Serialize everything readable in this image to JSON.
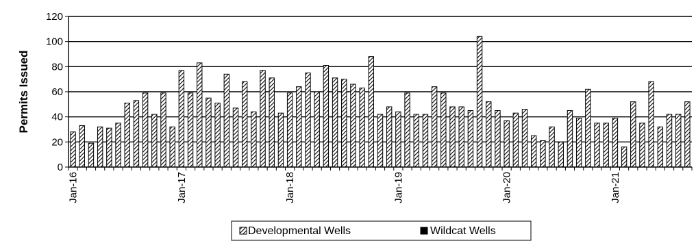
{
  "chart_data": {
    "type": "bar",
    "ylabel": "Permits Issued",
    "xlabel": "",
    "ylim": [
      0,
      120
    ],
    "yticks": [
      0,
      20,
      40,
      60,
      80,
      100,
      120
    ],
    "grid": true,
    "legend_position": "bottom",
    "x_tick_labels": [
      "Jan-16",
      "Jan-17",
      "Jan-18",
      "Jan-19",
      "Jan-20",
      "Jan-21"
    ],
    "categories": [
      "Jan-16",
      "Feb-16",
      "Mar-16",
      "Apr-16",
      "May-16",
      "Jun-16",
      "Jul-16",
      "Aug-16",
      "Sep-16",
      "Oct-16",
      "Nov-16",
      "Dec-16",
      "Jan-17",
      "Feb-17",
      "Mar-17",
      "Apr-17",
      "May-17",
      "Jun-17",
      "Jul-17",
      "Aug-17",
      "Sep-17",
      "Oct-17",
      "Nov-17",
      "Dec-17",
      "Jan-18",
      "Feb-18",
      "Mar-18",
      "Apr-18",
      "May-18",
      "Jun-18",
      "Jul-18",
      "Aug-18",
      "Sep-18",
      "Oct-18",
      "Nov-18",
      "Dec-18",
      "Jan-19",
      "Feb-19",
      "Mar-19",
      "Apr-19",
      "May-19",
      "Jun-19",
      "Jul-19",
      "Aug-19",
      "Sep-19",
      "Oct-19",
      "Nov-19",
      "Dec-19",
      "Jan-20",
      "Feb-20",
      "Mar-20",
      "Apr-20",
      "May-20",
      "Jun-20",
      "Jul-20",
      "Aug-20",
      "Sep-20",
      "Oct-20",
      "Nov-20",
      "Dec-20",
      "Jan-21",
      "Feb-21",
      "Mar-21",
      "Apr-21",
      "May-21",
      "Jun-21",
      "Jul-21",
      "Aug-21",
      "Sep-21"
    ],
    "series": [
      {
        "name": "Developmental Wells",
        "color": "#000000",
        "pattern": "diagonal-hatch",
        "values": [
          28,
          33,
          19,
          32,
          31,
          35,
          51,
          53,
          59,
          42,
          59,
          32,
          77,
          59,
          83,
          55,
          51,
          74,
          47,
          68,
          44,
          77,
          71,
          43,
          59,
          64,
          75,
          60,
          81,
          71,
          70,
          66,
          63,
          88,
          42,
          48,
          44,
          59,
          42,
          42,
          64,
          59,
          48,
          48,
          45,
          104,
          52,
          45,
          37,
          43,
          46,
          25,
          21,
          32,
          20,
          45,
          39,
          62,
          35,
          35,
          39,
          16,
          52,
          35,
          68,
          32,
          42,
          42,
          52
        ]
      },
      {
        "name": "Wildcat Wells",
        "color": "#000000",
        "pattern": "solid",
        "values": [
          0,
          0,
          0,
          0,
          0,
          0,
          0,
          0,
          0,
          0,
          0,
          0,
          0,
          0,
          0,
          0,
          0,
          0,
          0,
          0,
          0,
          0,
          0,
          0,
          0,
          0,
          0,
          0,
          0,
          0,
          0,
          0,
          0,
          0,
          0,
          0,
          0,
          0,
          0,
          0,
          0,
          0,
          0,
          0,
          0,
          0,
          0,
          0,
          0,
          0,
          0,
          0,
          0,
          0,
          0,
          0,
          0,
          0,
          0,
          0,
          0,
          0,
          0,
          0,
          0,
          0,
          0,
          0,
          0
        ]
      }
    ]
  }
}
